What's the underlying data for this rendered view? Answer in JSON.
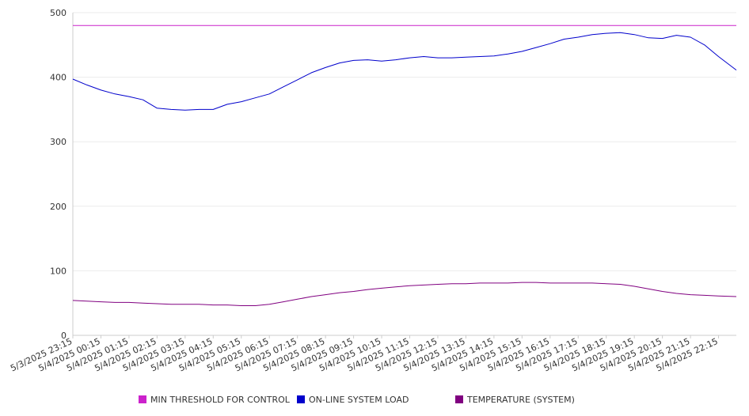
{
  "chart_data": {
    "type": "line",
    "title": "",
    "xlabel": "",
    "ylabel": "",
    "ylim": [
      0,
      500
    ],
    "y_ticks": [
      0,
      100,
      200,
      300,
      400,
      500
    ],
    "grid": "horizontal",
    "legend_position": "bottom",
    "x_start": "5/3/2025 23:15",
    "x_end": "5/4/2025 22:53",
    "x_tick_labels": [
      "5/3/2025 23:15",
      "5/4/2025 00:15",
      "5/4/2025 01:15",
      "5/4/2025 02:15",
      "5/4/2025 03:15",
      "5/4/2025 04:15",
      "5/4/2025 05:15",
      "5/4/2025 06:15",
      "5/4/2025 07:15",
      "5/4/2025 08:15",
      "5/4/2025 09:15",
      "5/4/2025 10:15",
      "5/4/2025 11:15",
      "5/4/2025 12:15",
      "5/4/2025 13:15",
      "5/4/2025 14:15",
      "5/4/2025 15:15",
      "5/4/2025 16:15",
      "5/4/2025 17:15",
      "5/4/2025 18:15",
      "5/4/2025 19:15",
      "5/4/2025 20:15",
      "5/4/2025 21:15",
      "5/4/2025 22:15"
    ],
    "x": [
      "5/3/2025 23:15",
      "5/3/2025 23:45",
      "5/4/2025 00:15",
      "5/4/2025 00:45",
      "5/4/2025 01:15",
      "5/4/2025 01:45",
      "5/4/2025 02:15",
      "5/4/2025 02:45",
      "5/4/2025 03:15",
      "5/4/2025 03:45",
      "5/4/2025 04:15",
      "5/4/2025 04:45",
      "5/4/2025 05:15",
      "5/4/2025 05:45",
      "5/4/2025 06:15",
      "5/4/2025 06:45",
      "5/4/2025 07:15",
      "5/4/2025 07:45",
      "5/4/2025 08:15",
      "5/4/2025 08:45",
      "5/4/2025 09:15",
      "5/4/2025 09:45",
      "5/4/2025 10:15",
      "5/4/2025 10:45",
      "5/4/2025 11:15",
      "5/4/2025 11:45",
      "5/4/2025 12:15",
      "5/4/2025 12:45",
      "5/4/2025 13:15",
      "5/4/2025 13:45",
      "5/4/2025 14:15",
      "5/4/2025 14:45",
      "5/4/2025 15:15",
      "5/4/2025 15:45",
      "5/4/2025 16:15",
      "5/4/2025 16:45",
      "5/4/2025 17:15",
      "5/4/2025 17:45",
      "5/4/2025 18:15",
      "5/4/2025 18:45",
      "5/4/2025 19:15",
      "5/4/2025 19:45",
      "5/4/2025 20:15",
      "5/4/2025 20:45",
      "5/4/2025 21:15",
      "5/4/2025 21:45",
      "5/4/2025 22:15",
      "5/4/2025 22:53"
    ],
    "series": [
      {
        "name": "MIN THRESHOLD FOR CONTROL",
        "color": "#cc22cc",
        "values": [
          480,
          480,
          480,
          480,
          480,
          480,
          480,
          480,
          480,
          480,
          480,
          480,
          480,
          480,
          480,
          480,
          480,
          480,
          480,
          480,
          480,
          480,
          480,
          480,
          480,
          480,
          480,
          480,
          480,
          480,
          480,
          480,
          480,
          480,
          480,
          480,
          480,
          480,
          480,
          480,
          480,
          480,
          480,
          480,
          480,
          480,
          480,
          480
        ]
      },
      {
        "name": "ON-LINE SYSTEM LOAD",
        "color": "#0000cc",
        "values": [
          397,
          388,
          380,
          374,
          370,
          365,
          352,
          350,
          349,
          350,
          350,
          358,
          362,
          368,
          374,
          385,
          396,
          407,
          415,
          422,
          426,
          427,
          425,
          427,
          430,
          432,
          430,
          430,
          431,
          432,
          433,
          436,
          440,
          446,
          452,
          459,
          462,
          466,
          468,
          469,
          466,
          461,
          460,
          465,
          462,
          450,
          432,
          411
        ]
      },
      {
        "name": "TEMPERATURE (SYSTEM)",
        "color": "#800080",
        "values": [
          54,
          53,
          52,
          51,
          51,
          50,
          49,
          48,
          48,
          48,
          47,
          47,
          46,
          46,
          48,
          52,
          56,
          60,
          63,
          66,
          68,
          71,
          73,
          75,
          77,
          78,
          79,
          80,
          80,
          81,
          81,
          81,
          82,
          82,
          81,
          81,
          81,
          81,
          80,
          79,
          76,
          72,
          68,
          65,
          63,
          62,
          61,
          60
        ]
      }
    ]
  }
}
